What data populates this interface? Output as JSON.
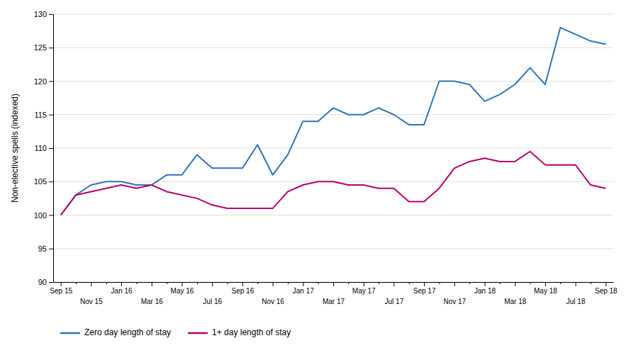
{
  "chart_data": {
    "type": "line",
    "ylabel": "Non-elective spells (indexed)",
    "categories": [
      "Sep 15",
      null,
      "Nov 15",
      null,
      "Jan 16",
      null,
      "Mar 16",
      null,
      "May 16",
      null,
      "Jul 16",
      null,
      "Sep 16",
      null,
      "Nov 16",
      null,
      "Jan 17",
      null,
      "Mar 17",
      null,
      "May 17",
      null,
      "Jul 17",
      null,
      "Sep 17",
      null,
      "Nov 17",
      null,
      "Jan 18",
      null,
      "Mar 18",
      null,
      "May 18",
      null,
      "Jul 18",
      null,
      "Sep 18"
    ],
    "series": [
      {
        "name": "Zero day length of stay",
        "color": "#2E75B6",
        "values": [
          100,
          103,
          104.5,
          105,
          105,
          104.5,
          104.5,
          106,
          106,
          109,
          107,
          107,
          107,
          110.5,
          106,
          109,
          114,
          114,
          116,
          115,
          115,
          116,
          115,
          113.5,
          113.5,
          120,
          120,
          119.5,
          117,
          118,
          119.5,
          122,
          119.5,
          128,
          127,
          126,
          125.5
        ]
      },
      {
        "name": "1+ day length of stay",
        "color": "#B5006A",
        "values": [
          100,
          103,
          103.5,
          104,
          104.5,
          104,
          104.5,
          103.5,
          103,
          102.5,
          101.5,
          101,
          101,
          101,
          101,
          103.5,
          104.5,
          105,
          105,
          104.5,
          104.5,
          104,
          104,
          102,
          102,
          104,
          107,
          108,
          108.5,
          108,
          108,
          109.5,
          107.5,
          107.5,
          107.5,
          104.5,
          104
        ]
      }
    ],
    "ylim": [
      90,
      130
    ],
    "yticks": [
      90,
      95,
      100,
      105,
      110,
      115,
      120,
      125,
      130
    ],
    "grid": true,
    "legend": "lower left"
  }
}
